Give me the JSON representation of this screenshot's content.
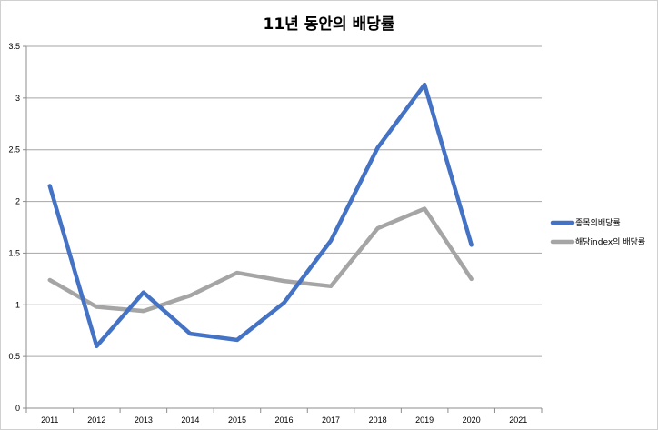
{
  "chart_data": {
    "type": "line",
    "title": "11년 동안의 배당률",
    "xlabel": "",
    "ylabel": "",
    "categories": [
      "2011",
      "2012",
      "2013",
      "2014",
      "2015",
      "2016",
      "2017",
      "2018",
      "2019",
      "2020",
      "2021"
    ],
    "ylim": [
      0,
      3.5
    ],
    "yticks": [
      "0",
      "0.5",
      "1",
      "1.5",
      "2",
      "2.5",
      "3",
      "3.5"
    ],
    "grid": true,
    "legend_position": "right",
    "series": [
      {
        "name": "종목의배당률",
        "color": "#4472c4",
        "values": [
          2.15,
          0.6,
          1.12,
          0.72,
          0.66,
          1.02,
          1.62,
          2.52,
          3.13,
          1.58,
          null
        ]
      },
      {
        "name": "해당index의 배당률",
        "color": "#a5a5a5",
        "values": [
          1.24,
          0.98,
          0.94,
          1.09,
          1.31,
          1.23,
          1.18,
          1.74,
          1.93,
          1.25,
          null
        ]
      }
    ]
  }
}
